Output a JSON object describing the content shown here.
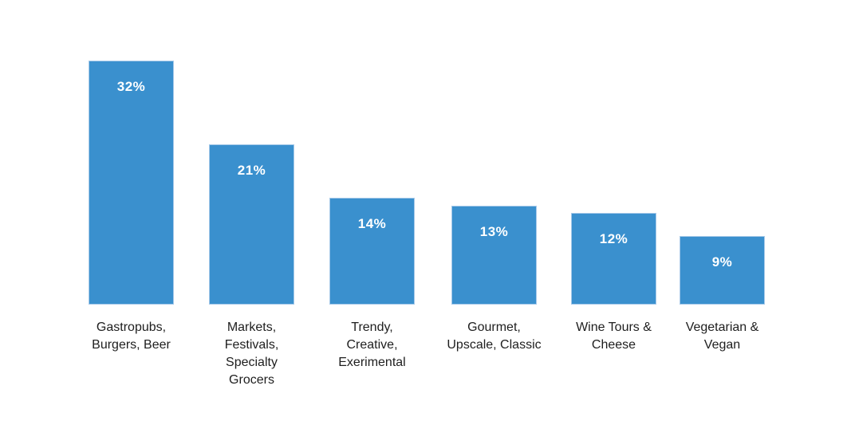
{
  "chart_data": {
    "type": "bar",
    "title": "",
    "xlabel": "",
    "ylabel": "",
    "ylim": [
      0,
      32
    ],
    "grid": false,
    "legend": false,
    "axes_visible": false,
    "background_color": "#FFFFFF",
    "bar_color": "#3A90CE",
    "bar_border_color": "#A6C9E9",
    "value_label_color": "#FFFFFF",
    "category_label_color": "#1E1E1E",
    "categories": [
      "Gastropubs, Burgers, Beer",
      "Markets, Festivals, Specialty Grocers",
      "Trendy, Creative, Exerimental",
      "Gourmet, Upscale, Classic",
      "Wine Tours & Cheese",
      "Vegetarian & Vegan"
    ],
    "category_lines": [
      [
        "Gastropubs,",
        "Burgers, Beer"
      ],
      [
        "Markets,",
        "Festivals,",
        "Specialty",
        "Grocers"
      ],
      [
        "Trendy,",
        "Creative,",
        "Exerimental"
      ],
      [
        "Gourmet,",
        "Upscale, Classic"
      ],
      [
        "Wine Tours &",
        "Cheese"
      ],
      [
        "Vegetarian &",
        "Vegan"
      ]
    ],
    "values": [
      32,
      21,
      14,
      13,
      12,
      9
    ],
    "value_labels": [
      "32%",
      "21%",
      "14%",
      "13%",
      "12%",
      "9%"
    ]
  }
}
